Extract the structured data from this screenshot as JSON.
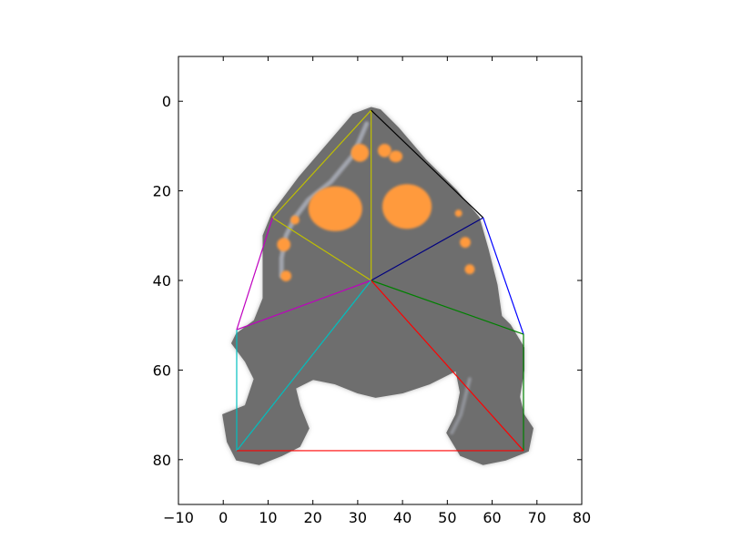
{
  "chart_data": {
    "type": "image-overlay",
    "title": "",
    "xlabel": "",
    "ylabel": "",
    "xlim": [
      -10,
      80
    ],
    "ylim": [
      90,
      -10
    ],
    "y_inverted": true,
    "grid": false,
    "legend": "none",
    "x_ticks": [
      {
        "value": -10,
        "label": "−10"
      },
      {
        "value": 0,
        "label": "0"
      },
      {
        "value": 10,
        "label": "10"
      },
      {
        "value": 20,
        "label": "20"
      },
      {
        "value": 30,
        "label": "30"
      },
      {
        "value": 40,
        "label": "40"
      },
      {
        "value": 50,
        "label": "50"
      },
      {
        "value": 60,
        "label": "60"
      },
      {
        "value": 70,
        "label": "70"
      },
      {
        "value": 80,
        "label": "80"
      }
    ],
    "y_ticks": [
      {
        "value": 0,
        "label": "0"
      },
      {
        "value": 20,
        "label": "20"
      },
      {
        "value": 40,
        "label": "40"
      },
      {
        "value": 60,
        "label": "60"
      },
      {
        "value": 80,
        "label": "80"
      }
    ],
    "background_image": {
      "description_colors": {
        "body": "#6e6e6e",
        "outline": "#9a9a9a",
        "spots": "#ff9a3c",
        "highlights": "#b4b8c4"
      },
      "body_outline": [
        [
          33,
          1.5
        ],
        [
          29,
          3
        ],
        [
          23,
          10
        ],
        [
          17,
          17
        ],
        [
          11,
          25
        ],
        [
          9,
          30
        ],
        [
          9,
          37
        ],
        [
          9,
          44
        ],
        [
          7,
          49
        ],
        [
          3,
          52
        ],
        [
          2,
          54
        ],
        [
          5,
          58
        ],
        [
          7,
          62
        ],
        [
          5,
          68
        ],
        [
          0,
          70
        ],
        [
          1,
          76
        ],
        [
          3,
          80
        ],
        [
          8,
          81
        ],
        [
          13,
          79
        ],
        [
          17,
          77
        ],
        [
          19,
          73
        ],
        [
          17,
          68
        ],
        [
          16,
          64
        ],
        [
          20,
          62
        ],
        [
          25,
          63
        ],
        [
          30,
          65
        ],
        [
          34,
          66
        ],
        [
          40,
          65
        ],
        [
          46,
          63
        ],
        [
          52,
          60
        ],
        [
          53,
          65
        ],
        [
          52,
          70
        ],
        [
          50,
          74
        ],
        [
          53,
          79
        ],
        [
          58,
          81
        ],
        [
          63,
          80
        ],
        [
          68,
          78
        ],
        [
          69,
          73
        ],
        [
          67,
          70
        ],
        [
          66,
          66
        ],
        [
          67,
          60
        ],
        [
          67,
          55
        ],
        [
          64,
          50
        ],
        [
          62,
          48
        ],
        [
          61,
          41
        ],
        [
          59,
          33
        ],
        [
          57,
          26
        ],
        [
          52,
          20
        ],
        [
          45,
          13
        ],
        [
          39,
          6
        ],
        [
          35,
          2
        ]
      ],
      "spots": [
        {
          "cx": 25,
          "cy": 24,
          "rx": 6,
          "ry": 5
        },
        {
          "cx": 41,
          "cy": 23.5,
          "rx": 5.5,
          "ry": 5
        },
        {
          "cx": 30.5,
          "cy": 11.5,
          "rx": 2,
          "ry": 2
        },
        {
          "cx": 36,
          "cy": 11,
          "rx": 1.5,
          "ry": 1.5
        },
        {
          "cx": 38.5,
          "cy": 12.3,
          "rx": 1.5,
          "ry": 1.3
        },
        {
          "cx": 16,
          "cy": 26.5,
          "rx": 1,
          "ry": 1
        },
        {
          "cx": 13.5,
          "cy": 32,
          "rx": 1.5,
          "ry": 1.5
        },
        {
          "cx": 14,
          "cy": 39,
          "rx": 1.2,
          "ry": 1.2
        },
        {
          "cx": 52.5,
          "cy": 25,
          "rx": 0.8,
          "ry": 0.8
        },
        {
          "cx": 54,
          "cy": 31.5,
          "rx": 1.2,
          "ry": 1.2
        },
        {
          "cx": 55,
          "cy": 37.5,
          "rx": 1.1,
          "ry": 1.1
        }
      ]
    },
    "keypoints": {
      "top": [
        33,
        2
      ],
      "center": [
        33,
        40
      ],
      "left_shoulder": [
        11,
        26
      ],
      "right_shoulder": [
        58,
        26
      ],
      "left_hip": [
        3,
        51
      ],
      "right_hip": [
        67,
        52
      ],
      "left_foot": [
        3,
        78
      ],
      "right_foot": [
        67,
        78
      ]
    },
    "series": [
      {
        "color": "#c0c000",
        "segments": [
          [
            "top",
            "center"
          ],
          [
            "top",
            "left_shoulder"
          ],
          [
            "left_shoulder",
            "center"
          ]
        ]
      },
      {
        "color": "#000000",
        "segments": [
          [
            "top",
            "right_shoulder"
          ]
        ]
      },
      {
        "color": "#000080",
        "segments": [
          [
            "right_shoulder",
            "center"
          ]
        ]
      },
      {
        "color": "#0000ff",
        "segments": [
          [
            "right_shoulder",
            "right_hip"
          ]
        ]
      },
      {
        "color": "#bf00bf",
        "segments": [
          [
            "left_shoulder",
            "left_hip"
          ],
          [
            "left_hip",
            "center"
          ]
        ]
      },
      {
        "color": "#008000",
        "segments": [
          [
            "center",
            "right_hip"
          ],
          [
            "right_hip",
            "right_foot"
          ]
        ]
      },
      {
        "color": "#00bfbf",
        "segments": [
          [
            "left_hip",
            "left_foot"
          ],
          [
            "left_foot",
            "center"
          ]
        ]
      },
      {
        "color": "#ff0000",
        "segments": [
          [
            "center",
            "right_foot"
          ],
          [
            "left_foot",
            "right_foot"
          ]
        ]
      }
    ]
  }
}
